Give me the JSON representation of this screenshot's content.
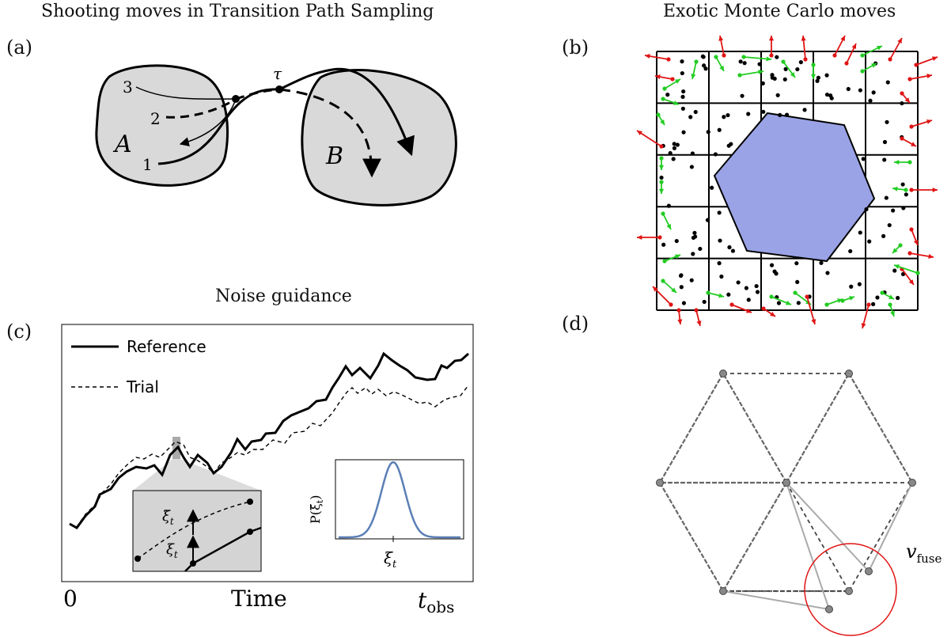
{
  "panel_a": {
    "title": "Shooting moves in Transition Path Sampling",
    "label": "(a)",
    "region_a": "A",
    "region_b": "B",
    "tau": "τ",
    "path_1": "1",
    "path_2": "2",
    "path_3": "3"
  },
  "panel_b": {
    "title": "Exotic Monte Carlo moves",
    "label": "(b)",
    "colors": {
      "fill": "#9aa3e6",
      "red": "#e01414",
      "green": "#22cc22"
    }
  },
  "panel_c": {
    "title": "Noise guidance",
    "label": "(c)",
    "legend_reference": "Reference",
    "legend_trial": "Trial",
    "x_start": "0",
    "xlabel": "Time",
    "x_end": "t",
    "x_end_sub": "obs",
    "inset_xi_tilde": "ξ̃",
    "inset_xi_tilde_sub": "t",
    "inset_xi": "ξ",
    "inset_xi_sub": "t",
    "gauss_ylabel": "P(ξ̃",
    "gauss_ylabel_sub": "t",
    "gauss_xlabel": "ξ",
    "gauss_xlabel_sub": "t",
    "colors": {
      "gauss": "#5b7fb5"
    }
  },
  "panel_d": {
    "label": "(d)",
    "vfuse": "v",
    "vfuse_sub": "fuse",
    "colors": {
      "edge": "#666666",
      "circle": "#e01414"
    }
  }
}
